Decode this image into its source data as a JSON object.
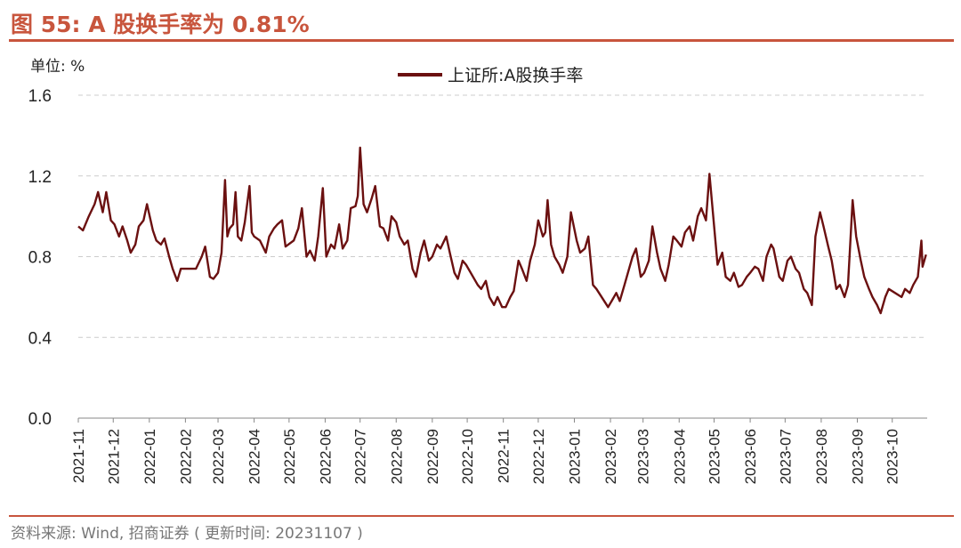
{
  "title": "图 55:  A 股换手率为 0.81%",
  "unit_label": "单位:  %",
  "source": "资料来源:  Wind,  招商证券 ( 更新时间:  20231107 )",
  "colors": {
    "accent": "#c8553d",
    "series": "#6b1010",
    "grid": "#cccccc"
  },
  "chart_data": {
    "type": "line",
    "legend_position": "top-center",
    "grid": "horizontal-dashed",
    "ylim": [
      0.0,
      1.6
    ],
    "yticks": [
      0.0,
      0.4,
      0.8,
      1.2,
      1.6
    ],
    "ytick_labels": [
      "0.0",
      "0.4",
      "0.8",
      "1.2",
      "1.6"
    ],
    "xlim": [
      "2021-11-01",
      "2023-10-31"
    ],
    "xticks": [
      "2021-11",
      "2021-12",
      "2022-01",
      "2022-02",
      "2022-03",
      "2022-04",
      "2022-05",
      "2022-06",
      "2022-07",
      "2022-08",
      "2022-09",
      "2022-10",
      "2022-11",
      "2022-12",
      "2023-01",
      "2023-02",
      "2023-03",
      "2023-04",
      "2023-05",
      "2023-06",
      "2023-07",
      "2023-08",
      "2023-09",
      "2023-10"
    ],
    "series": [
      {
        "name": "上证所:A股换手率",
        "points": [
          [
            "2021-11-01",
            0.95
          ],
          [
            "2021-11-05",
            0.93
          ],
          [
            "2021-11-10",
            1.0
          ],
          [
            "2021-11-15",
            1.06
          ],
          [
            "2021-11-18",
            1.12
          ],
          [
            "2021-11-22",
            1.02
          ],
          [
            "2021-11-25",
            1.12
          ],
          [
            "2021-11-29",
            0.98
          ],
          [
            "2021-12-02",
            0.96
          ],
          [
            "2021-12-06",
            0.9
          ],
          [
            "2021-12-09",
            0.95
          ],
          [
            "2021-12-13",
            0.88
          ],
          [
            "2021-12-16",
            0.82
          ],
          [
            "2021-12-20",
            0.86
          ],
          [
            "2021-12-23",
            0.95
          ],
          [
            "2021-12-27",
            0.98
          ],
          [
            "2021-12-30",
            1.06
          ],
          [
            "2022-01-04",
            0.93
          ],
          [
            "2022-01-07",
            0.88
          ],
          [
            "2022-01-11",
            0.86
          ],
          [
            "2022-01-14",
            0.89
          ],
          [
            "2022-01-18",
            0.8
          ],
          [
            "2022-01-21",
            0.74
          ],
          [
            "2022-01-25",
            0.68
          ],
          [
            "2022-01-28",
            0.74
          ],
          [
            "2022-02-07",
            0.74
          ],
          [
            "2022-02-10",
            0.74
          ],
          [
            "2022-02-15",
            0.8
          ],
          [
            "2022-02-18",
            0.85
          ],
          [
            "2022-02-22",
            0.7
          ],
          [
            "2022-02-25",
            0.69
          ],
          [
            "2022-03-01",
            0.72
          ],
          [
            "2022-03-04",
            0.82
          ],
          [
            "2022-03-07",
            1.18
          ],
          [
            "2022-03-09",
            0.9
          ],
          [
            "2022-03-11",
            0.94
          ],
          [
            "2022-03-14",
            0.96
          ],
          [
            "2022-03-16",
            1.12
          ],
          [
            "2022-03-18",
            0.9
          ],
          [
            "2022-03-21",
            0.88
          ],
          [
            "2022-03-24",
            0.97
          ],
          [
            "2022-03-28",
            1.15
          ],
          [
            "2022-03-30",
            0.92
          ],
          [
            "2022-04-01",
            0.9
          ],
          [
            "2022-04-06",
            0.88
          ],
          [
            "2022-04-11",
            0.82
          ],
          [
            "2022-04-14",
            0.9
          ],
          [
            "2022-04-18",
            0.94
          ],
          [
            "2022-04-21",
            0.96
          ],
          [
            "2022-04-25",
            0.98
          ],
          [
            "2022-04-28",
            0.85
          ],
          [
            "2022-05-05",
            0.88
          ],
          [
            "2022-05-09",
            0.94
          ],
          [
            "2022-05-12",
            1.04
          ],
          [
            "2022-05-16",
            0.8
          ],
          [
            "2022-05-19",
            0.83
          ],
          [
            "2022-05-23",
            0.78
          ],
          [
            "2022-05-26",
            0.9
          ],
          [
            "2022-05-30",
            1.14
          ],
          [
            "2022-06-02",
            0.8
          ],
          [
            "2022-06-06",
            0.86
          ],
          [
            "2022-06-09",
            0.84
          ],
          [
            "2022-06-13",
            0.96
          ],
          [
            "2022-06-16",
            0.84
          ],
          [
            "2022-06-20",
            0.88
          ],
          [
            "2022-06-23",
            1.04
          ],
          [
            "2022-06-27",
            1.05
          ],
          [
            "2022-06-29",
            1.1
          ],
          [
            "2022-07-01",
            1.34
          ],
          [
            "2022-07-04",
            1.06
          ],
          [
            "2022-07-07",
            1.02
          ],
          [
            "2022-07-11",
            1.09
          ],
          [
            "2022-07-14",
            1.15
          ],
          [
            "2022-07-18",
            0.95
          ],
          [
            "2022-07-21",
            0.94
          ],
          [
            "2022-07-25",
            0.88
          ],
          [
            "2022-07-28",
            1.0
          ],
          [
            "2022-08-01",
            0.97
          ],
          [
            "2022-08-04",
            0.9
          ],
          [
            "2022-08-08",
            0.86
          ],
          [
            "2022-08-11",
            0.88
          ],
          [
            "2022-08-15",
            0.74
          ],
          [
            "2022-08-18",
            0.7
          ],
          [
            "2022-08-22",
            0.82
          ],
          [
            "2022-08-25",
            0.88
          ],
          [
            "2022-08-29",
            0.78
          ],
          [
            "2022-09-01",
            0.8
          ],
          [
            "2022-09-05",
            0.86
          ],
          [
            "2022-09-08",
            0.84
          ],
          [
            "2022-09-13",
            0.9
          ],
          [
            "2022-09-16",
            0.82
          ],
          [
            "2022-09-20",
            0.72
          ],
          [
            "2022-09-23",
            0.69
          ],
          [
            "2022-09-27",
            0.78
          ],
          [
            "2022-09-30",
            0.76
          ],
          [
            "2022-10-10",
            0.66
          ],
          [
            "2022-10-13",
            0.64
          ],
          [
            "2022-10-17",
            0.68
          ],
          [
            "2022-10-20",
            0.6
          ],
          [
            "2022-10-24",
            0.56
          ],
          [
            "2022-10-27",
            0.6
          ],
          [
            "2022-10-31",
            0.55
          ],
          [
            "2022-11-03",
            0.55
          ],
          [
            "2022-11-07",
            0.6
          ],
          [
            "2022-11-10",
            0.63
          ],
          [
            "2022-11-14",
            0.78
          ],
          [
            "2022-11-17",
            0.74
          ],
          [
            "2022-11-21",
            0.68
          ],
          [
            "2022-11-24",
            0.78
          ],
          [
            "2022-11-28",
            0.86
          ],
          [
            "2022-12-01",
            0.98
          ],
          [
            "2022-12-05",
            0.9
          ],
          [
            "2022-12-07",
            0.92
          ],
          [
            "2022-12-09",
            1.08
          ],
          [
            "2022-12-12",
            0.86
          ],
          [
            "2022-12-15",
            0.8
          ],
          [
            "2022-12-19",
            0.76
          ],
          [
            "2022-12-22",
            0.72
          ],
          [
            "2022-12-26",
            0.8
          ],
          [
            "2022-12-29",
            1.02
          ],
          [
            "2023-01-03",
            0.88
          ],
          [
            "2023-01-06",
            0.82
          ],
          [
            "2023-01-10",
            0.84
          ],
          [
            "2023-01-13",
            0.9
          ],
          [
            "2023-01-17",
            0.66
          ],
          [
            "2023-01-20",
            0.64
          ],
          [
            "2023-01-30",
            0.55
          ],
          [
            "2023-02-02",
            0.58
          ],
          [
            "2023-02-06",
            0.62
          ],
          [
            "2023-02-09",
            0.58
          ],
          [
            "2023-02-13",
            0.66
          ],
          [
            "2023-02-16",
            0.72
          ],
          [
            "2023-02-20",
            0.8
          ],
          [
            "2023-02-23",
            0.84
          ],
          [
            "2023-02-27",
            0.7
          ],
          [
            "2023-03-02",
            0.72
          ],
          [
            "2023-03-06",
            0.78
          ],
          [
            "2023-03-09",
            0.95
          ],
          [
            "2023-03-13",
            0.82
          ],
          [
            "2023-03-16",
            0.74
          ],
          [
            "2023-03-20",
            0.68
          ],
          [
            "2023-03-23",
            0.76
          ],
          [
            "2023-03-27",
            0.9
          ],
          [
            "2023-03-30",
            0.88
          ],
          [
            "2023-04-03",
            0.85
          ],
          [
            "2023-04-06",
            0.92
          ],
          [
            "2023-04-10",
            0.95
          ],
          [
            "2023-04-13",
            0.88
          ],
          [
            "2023-04-17",
            1.0
          ],
          [
            "2023-04-20",
            1.04
          ],
          [
            "2023-04-24",
            0.98
          ],
          [
            "2023-04-27",
            1.21
          ],
          [
            "2023-05-04",
            0.76
          ],
          [
            "2023-05-08",
            0.82
          ],
          [
            "2023-05-11",
            0.7
          ],
          [
            "2023-05-15",
            0.68
          ],
          [
            "2023-05-18",
            0.72
          ],
          [
            "2023-05-22",
            0.65
          ],
          [
            "2023-05-25",
            0.66
          ],
          [
            "2023-05-29",
            0.7
          ],
          [
            "2023-06-01",
            0.72
          ],
          [
            "2023-06-05",
            0.75
          ],
          [
            "2023-06-08",
            0.74
          ],
          [
            "2023-06-12",
            0.68
          ],
          [
            "2023-06-15",
            0.8
          ],
          [
            "2023-06-19",
            0.86
          ],
          [
            "2023-06-21",
            0.84
          ],
          [
            "2023-06-26",
            0.7
          ],
          [
            "2023-06-29",
            0.68
          ],
          [
            "2023-07-03",
            0.78
          ],
          [
            "2023-07-06",
            0.8
          ],
          [
            "2023-07-10",
            0.74
          ],
          [
            "2023-07-13",
            0.72
          ],
          [
            "2023-07-17",
            0.64
          ],
          [
            "2023-07-20",
            0.62
          ],
          [
            "2023-07-24",
            0.56
          ],
          [
            "2023-07-27",
            0.9
          ],
          [
            "2023-07-31",
            1.02
          ],
          [
            "2023-08-03",
            0.95
          ],
          [
            "2023-08-07",
            0.85
          ],
          [
            "2023-08-10",
            0.78
          ],
          [
            "2023-08-14",
            0.64
          ],
          [
            "2023-08-17",
            0.66
          ],
          [
            "2023-08-21",
            0.6
          ],
          [
            "2023-08-24",
            0.66
          ],
          [
            "2023-08-28",
            1.08
          ],
          [
            "2023-08-31",
            0.9
          ],
          [
            "2023-09-04",
            0.78
          ],
          [
            "2023-09-07",
            0.7
          ],
          [
            "2023-09-11",
            0.64
          ],
          [
            "2023-09-14",
            0.6
          ],
          [
            "2023-09-18",
            0.56
          ],
          [
            "2023-09-21",
            0.52
          ],
          [
            "2023-09-25",
            0.6
          ],
          [
            "2023-09-28",
            0.64
          ],
          [
            "2023-10-09",
            0.6
          ],
          [
            "2023-10-12",
            0.64
          ],
          [
            "2023-10-16",
            0.62
          ],
          [
            "2023-10-19",
            0.66
          ],
          [
            "2023-10-23",
            0.7
          ],
          [
            "2023-10-26",
            0.88
          ],
          [
            "2023-10-27",
            0.75
          ],
          [
            "2023-10-30",
            0.81
          ]
        ]
      }
    ]
  }
}
